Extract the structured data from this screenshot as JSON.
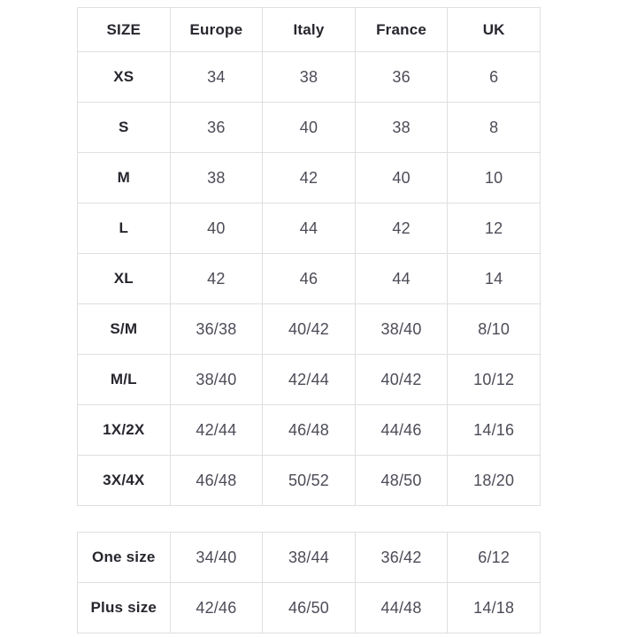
{
  "colors": {
    "background": "#ffffff",
    "border": "#dfdfdf",
    "label_text": "#26262e",
    "value_text": "#4c4c58"
  },
  "chart_data": {
    "type": "table",
    "title": "",
    "headers": [
      "SIZE",
      "Europe",
      "Italy",
      "France",
      "UK"
    ],
    "rows": [
      [
        "XS",
        "34",
        "38",
        "36",
        "6"
      ],
      [
        "S",
        "36",
        "40",
        "38",
        "8"
      ],
      [
        "M",
        "38",
        "42",
        "40",
        "10"
      ],
      [
        "L",
        "40",
        "44",
        "42",
        "12"
      ],
      [
        "XL",
        "42",
        "46",
        "44",
        "14"
      ],
      [
        "S/M",
        "36/38",
        "40/42",
        "38/40",
        "8/10"
      ],
      [
        "M/L",
        "38/40",
        "42/44",
        "40/42",
        "10/12"
      ],
      [
        "1X/2X",
        "42/44",
        "46/48",
        "44/46",
        "14/16"
      ],
      [
        "3X/4X",
        "46/48",
        "50/52",
        "48/50",
        "18/20"
      ]
    ],
    "footer_rows": [
      [
        "One size",
        "34/40",
        "38/44",
        "36/42",
        "6/12"
      ],
      [
        "Plus size",
        "42/46",
        "46/50",
        "44/48",
        "14/18"
      ]
    ],
    "layout": {
      "grid": true,
      "two_tables": true,
      "column_count": 5
    }
  }
}
